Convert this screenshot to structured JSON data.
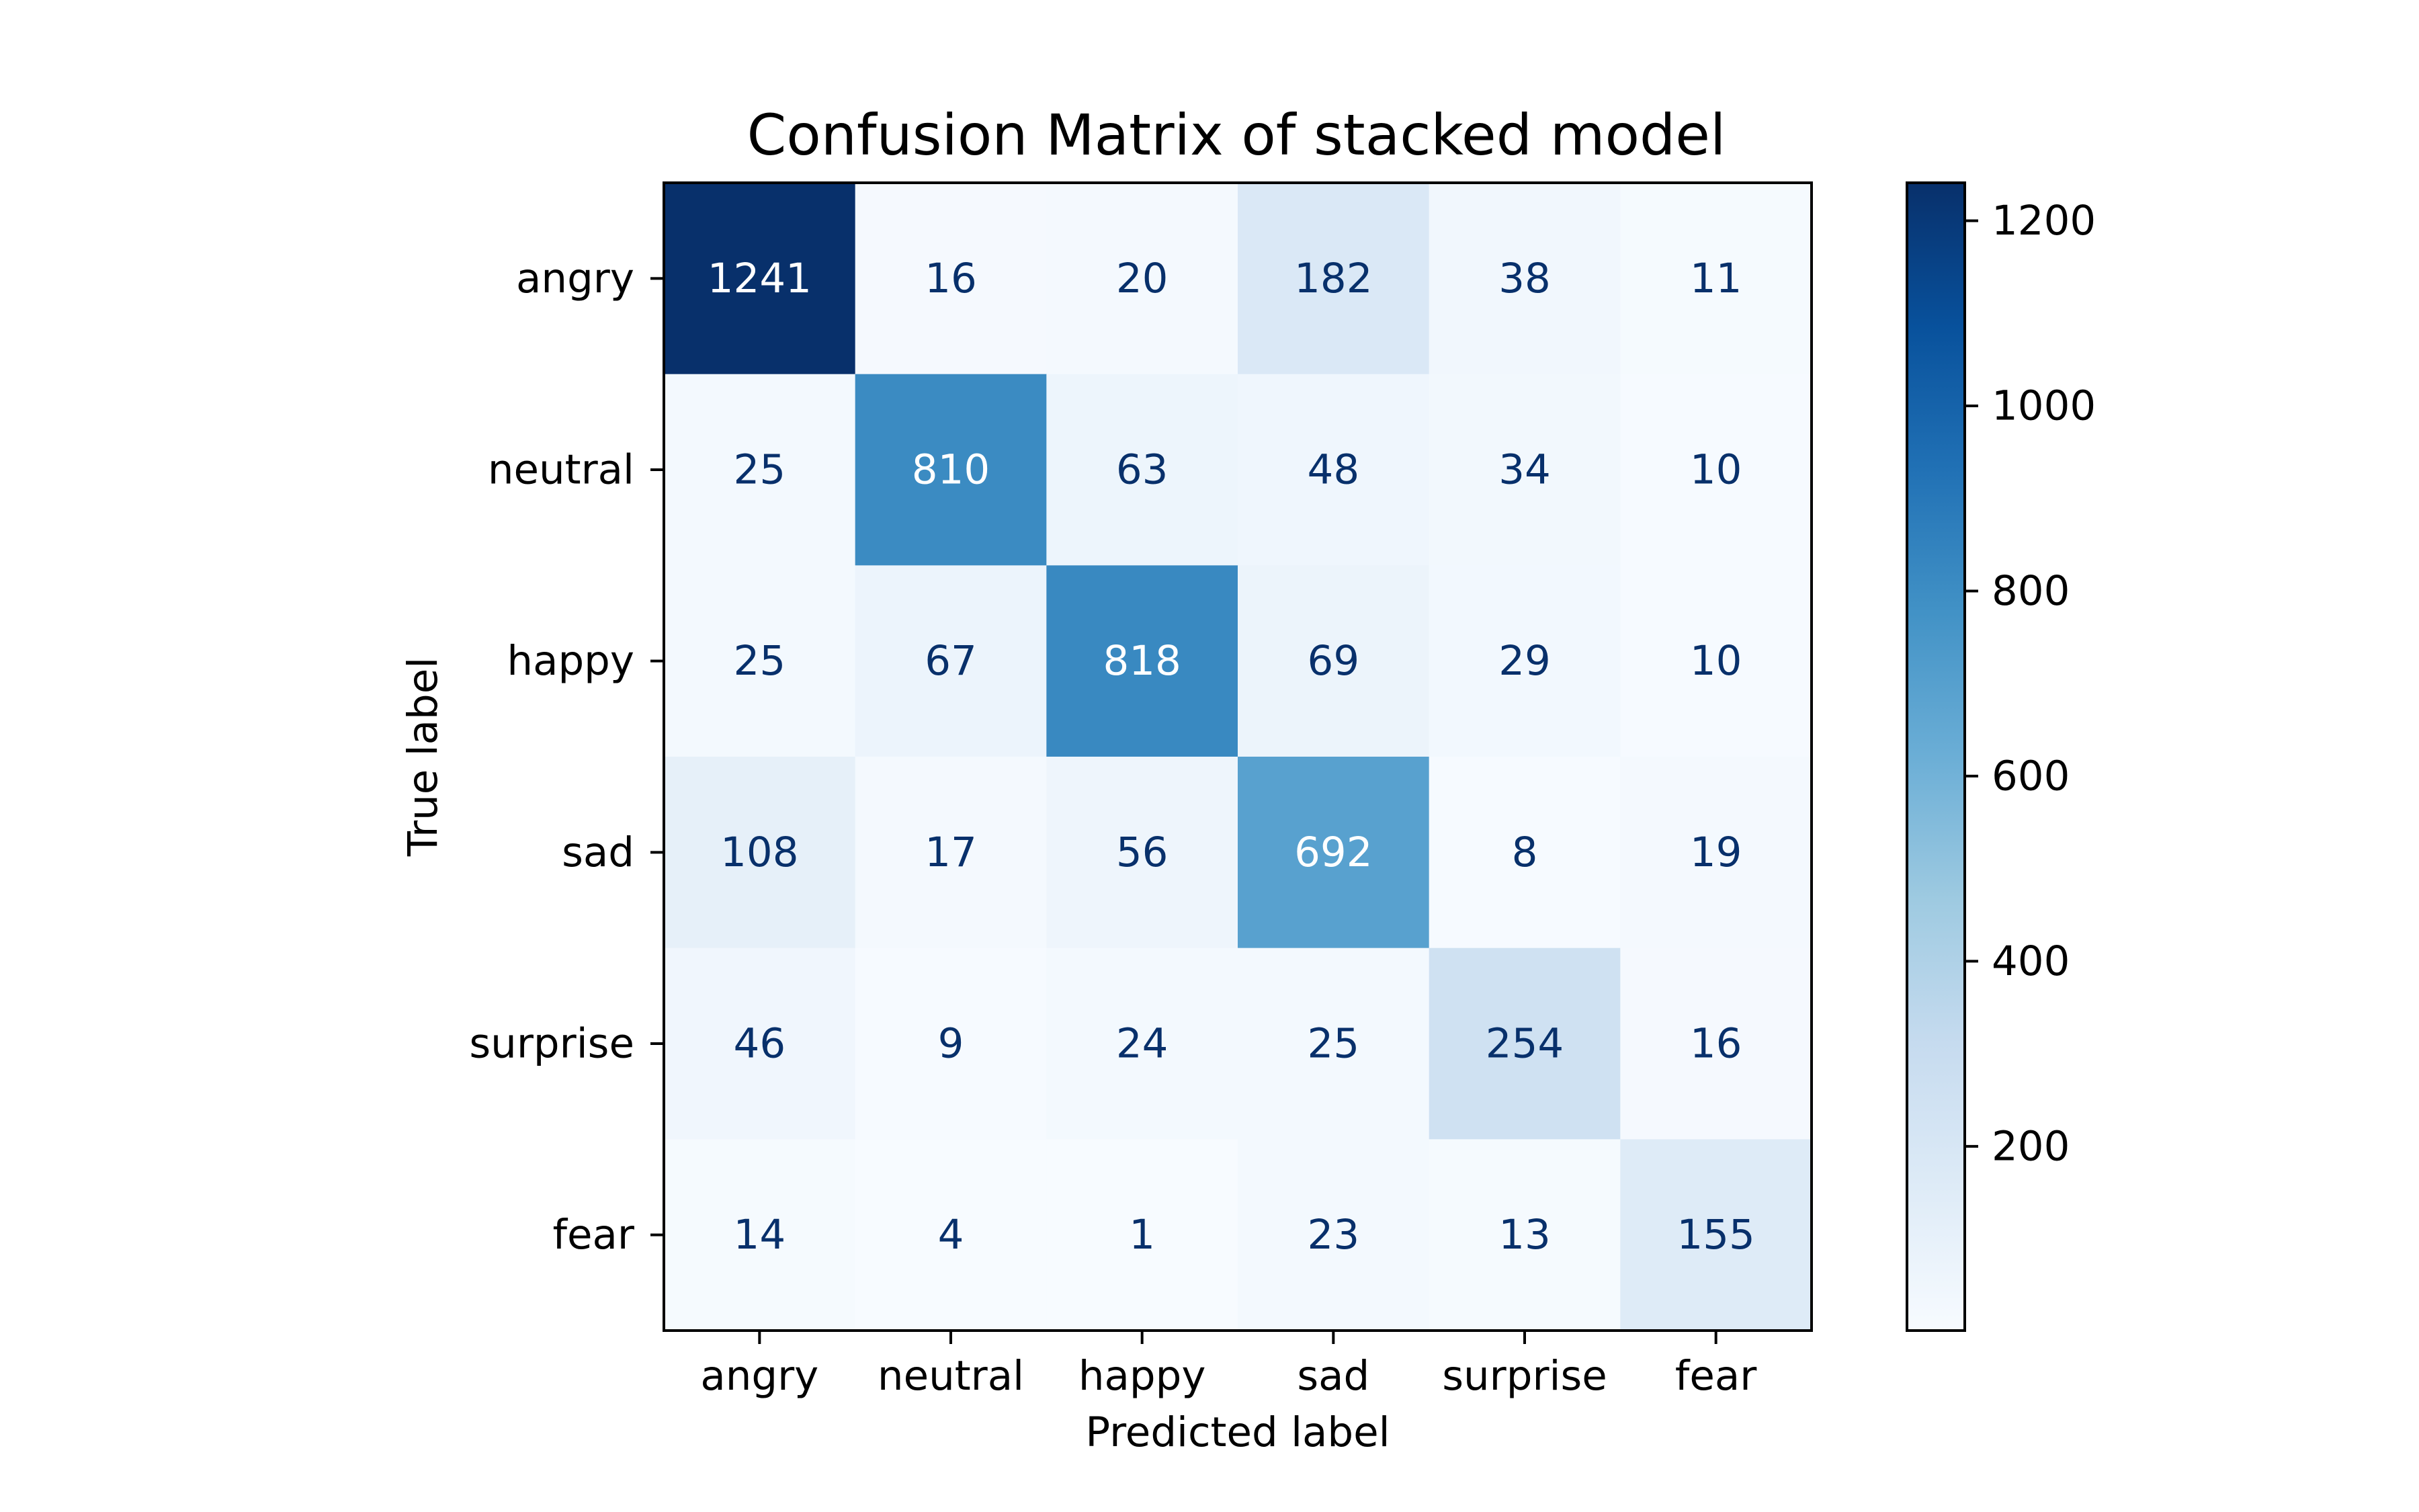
{
  "chart_data": {
    "type": "heatmap",
    "title": "Confusion Matrix of stacked model",
    "xlabel": "Predicted label",
    "ylabel": "True label",
    "x_categories": [
      "angry",
      "neutral",
      "happy",
      "sad",
      "surprise",
      "fear"
    ],
    "y_categories": [
      "angry",
      "neutral",
      "happy",
      "sad",
      "surprise",
      "fear"
    ],
    "matrix": [
      [
        1241,
        16,
        20,
        182,
        38,
        11
      ],
      [
        25,
        810,
        63,
        48,
        34,
        10
      ],
      [
        25,
        67,
        818,
        69,
        29,
        10
      ],
      [
        108,
        17,
        56,
        692,
        8,
        19
      ],
      [
        46,
        9,
        24,
        25,
        254,
        16
      ],
      [
        14,
        4,
        1,
        23,
        13,
        155
      ]
    ],
    "colormap": "Blues",
    "color_range": [
      1,
      1241
    ],
    "colorbar_ticks": [
      200,
      400,
      600,
      800,
      1000,
      1200
    ],
    "grid": false
  }
}
